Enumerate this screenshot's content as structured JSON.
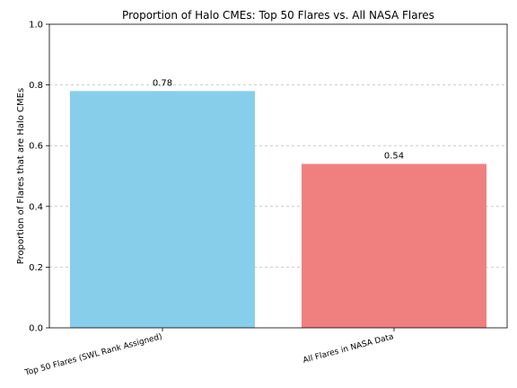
{
  "chart_data": {
    "type": "bar",
    "title": "Proportion of Halo CMEs: Top 50 Flares vs. All NASA Flares",
    "xlabel": "",
    "ylabel": "Proportion of Flares that are Halo CMEs",
    "categories": [
      "Top 50 Flares (SWL Rank Assigned)",
      "All Flares in NASA Data"
    ],
    "values": [
      0.78,
      0.54
    ],
    "value_labels": [
      "0.78",
      "0.54"
    ],
    "colors": [
      "#87ceeb",
      "#f08080"
    ],
    "ylim": [
      0,
      1.0
    ],
    "yticks": [
      0.0,
      0.2,
      0.4,
      0.6,
      0.8,
      1.0
    ],
    "ytick_labels": [
      "0.0",
      "0.2",
      "0.4",
      "0.6",
      "0.8",
      "1.0"
    ],
    "grid": "y-dashed",
    "legend": "none"
  }
}
